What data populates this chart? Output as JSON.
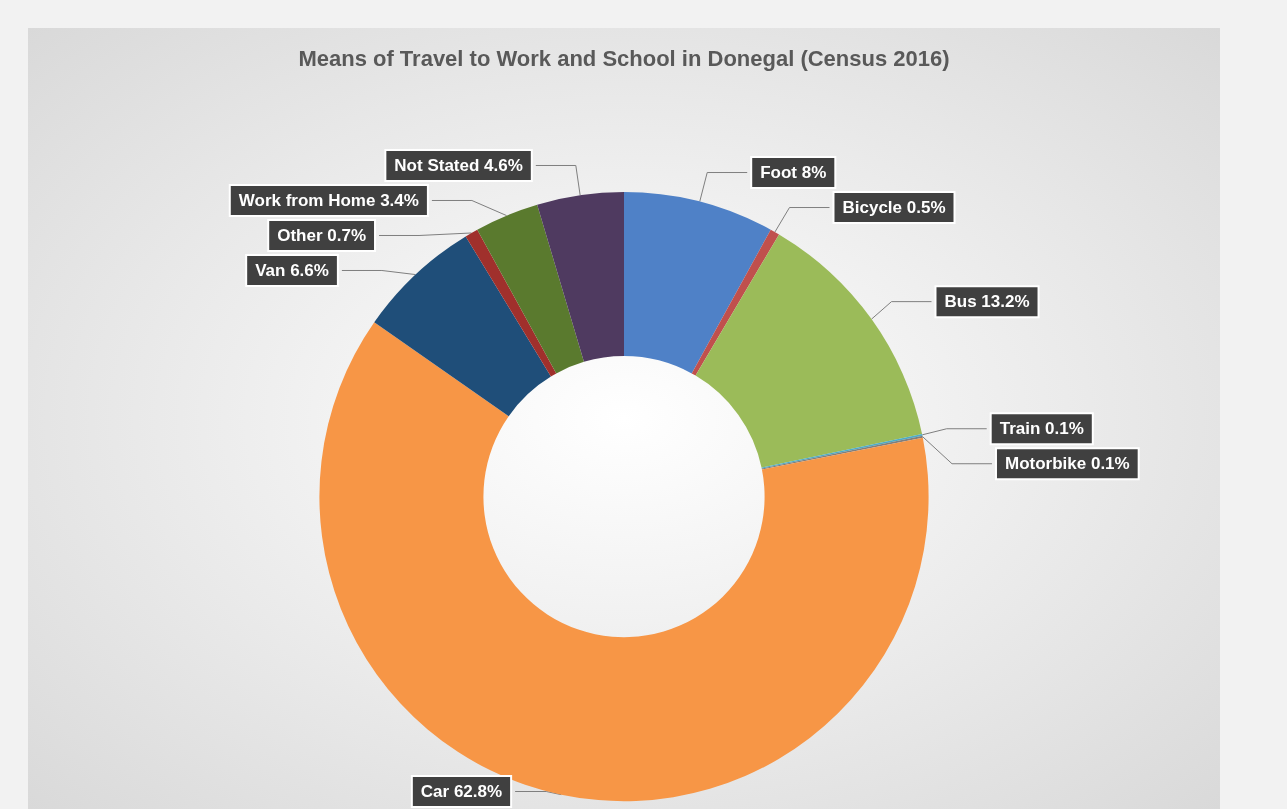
{
  "chart_data": {
    "type": "donut",
    "title": "Means of Travel to Work and School in Donegal (Census 2016)",
    "categories": [
      "Foot",
      "Bicycle",
      "Bus",
      "Train",
      "Motorbike",
      "Car",
      "Van",
      "Other",
      "Work from Home",
      "Not Stated"
    ],
    "values": [
      8,
      0.5,
      13.2,
      0.1,
      0.1,
      62.8,
      6.6,
      0.7,
      3.4,
      4.6
    ],
    "colors": [
      "#4f81c7",
      "#c0504d",
      "#9bbb59",
      "#4bacc6",
      "#7f7f7f",
      "#f79646",
      "#1f4e79",
      "#a0302c",
      "#5a7a2e",
      "#4f3a60"
    ],
    "value_labels": [
      "8%",
      "0.5%",
      "13.2%",
      "0.1%",
      "0.1%",
      "62.8%",
      "6.6%",
      "0.7%",
      "3.4%",
      "4.6%"
    ],
    "legend": false
  }
}
